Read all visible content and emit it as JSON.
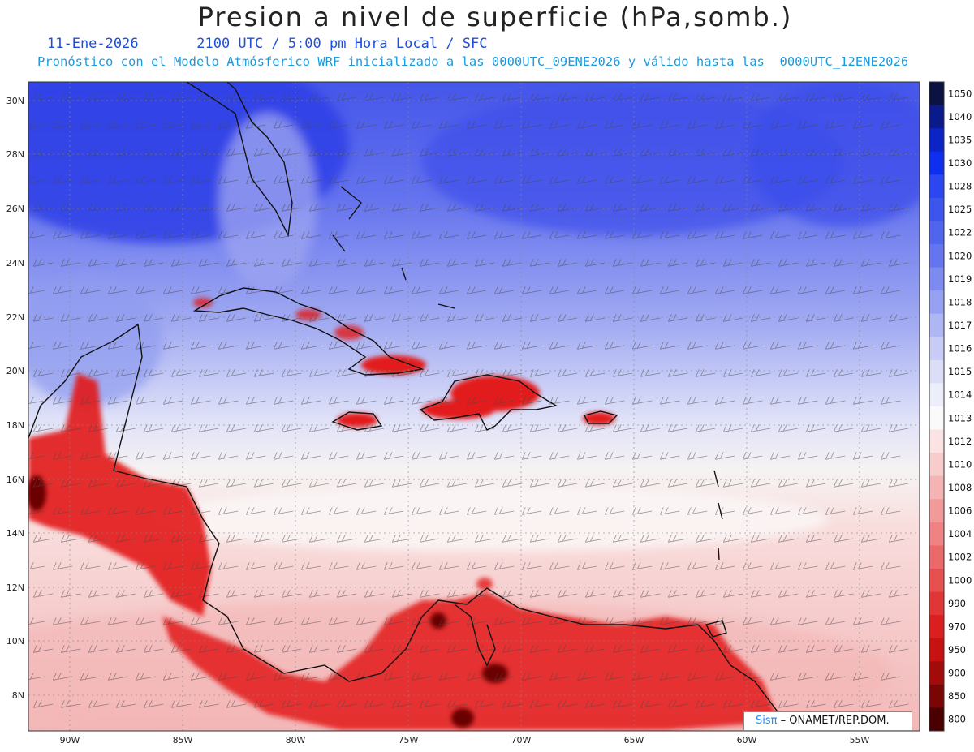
{
  "header": {
    "title": "Presion a nivel de superficie (hPa,somb.)",
    "date": "11-Ene-2026",
    "time_line": "2100 UTC / 5:00 pm Hora Local / SFC",
    "forecast_line": "Pronóstico con el Modelo Atmósferico WRF inicializado a las 0000UTC_09ENE2026 y válido hasta las  0000UTC_12ENE2026"
  },
  "map": {
    "lat_labels": [
      "30N",
      "28N",
      "26N",
      "24N",
      "22N",
      "20N",
      "18N",
      "16N",
      "14N",
      "12N",
      "10N",
      "8N"
    ],
    "lon_labels": [
      "90W",
      "85W",
      "80W",
      "75W",
      "70W",
      "65W",
      "60W",
      "55W"
    ],
    "colors": {
      "high": "#2c3be0",
      "mid": "#a9b1f0",
      "neutral": "#f4f1f1",
      "low": "#f8c9c9",
      "very_low": "#e01818"
    }
  },
  "colorbar": {
    "levels": [
      "1050",
      "1040",
      "1035",
      "1030",
      "1028",
      "1025",
      "1022",
      "1020",
      "1019",
      "1018",
      "1017",
      "1016",
      "1015",
      "1014",
      "1013",
      "1012",
      "1010",
      "1008",
      "1006",
      "1004",
      "1002",
      "1000",
      "990",
      "970",
      "950",
      "900",
      "850",
      "800"
    ],
    "colors": [
      "#0d1340",
      "#0b1a8a",
      "#0a24c8",
      "#0f2ff0",
      "#2a47f2",
      "#3c55ef",
      "#4f65ee",
      "#6575ef",
      "#7d8af0",
      "#97a1f2",
      "#afb6f4",
      "#c7cbf6",
      "#dcdef8",
      "#eceefa",
      "#fafafa",
      "#fbe3e3",
      "#f8cccc",
      "#f5b3b3",
      "#f29a9a",
      "#ef8282",
      "#ec6969",
      "#e85050",
      "#e23636",
      "#dc1e1e",
      "#c81212",
      "#a30a0a",
      "#7a0505",
      "#4a0000"
    ]
  },
  "credit": {
    "brand": "Sisπ",
    "org": " – ONAMET/REP.DOM."
  }
}
